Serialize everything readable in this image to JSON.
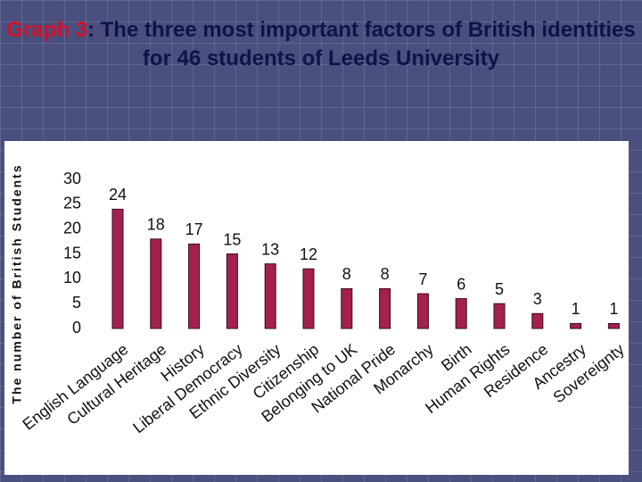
{
  "chart_data": {
    "type": "bar",
    "title_label": "Graph 3",
    "title": ": The three most important factors of British identities for 46 students of Leeds University",
    "ylabel": "The number of British Students",
    "categories": [
      "English Language",
      "Cultural Heritage",
      "History",
      "Liberal Democracy",
      "Ethnic Diversity",
      "Citizenship",
      "Belonging to UK",
      "National Pride",
      "Monarchy",
      "Birth",
      "Human Rights",
      "Residence",
      "Ancestry",
      "Sovereignty"
    ],
    "values": [
      24,
      18,
      17,
      15,
      13,
      12,
      8,
      8,
      7,
      6,
      5,
      3,
      1,
      1
    ],
    "color": "#a3214f",
    "ylim": [
      0,
      30
    ],
    "yticks": [
      0,
      5,
      10,
      15,
      20,
      25,
      30
    ],
    "grid": false
  }
}
